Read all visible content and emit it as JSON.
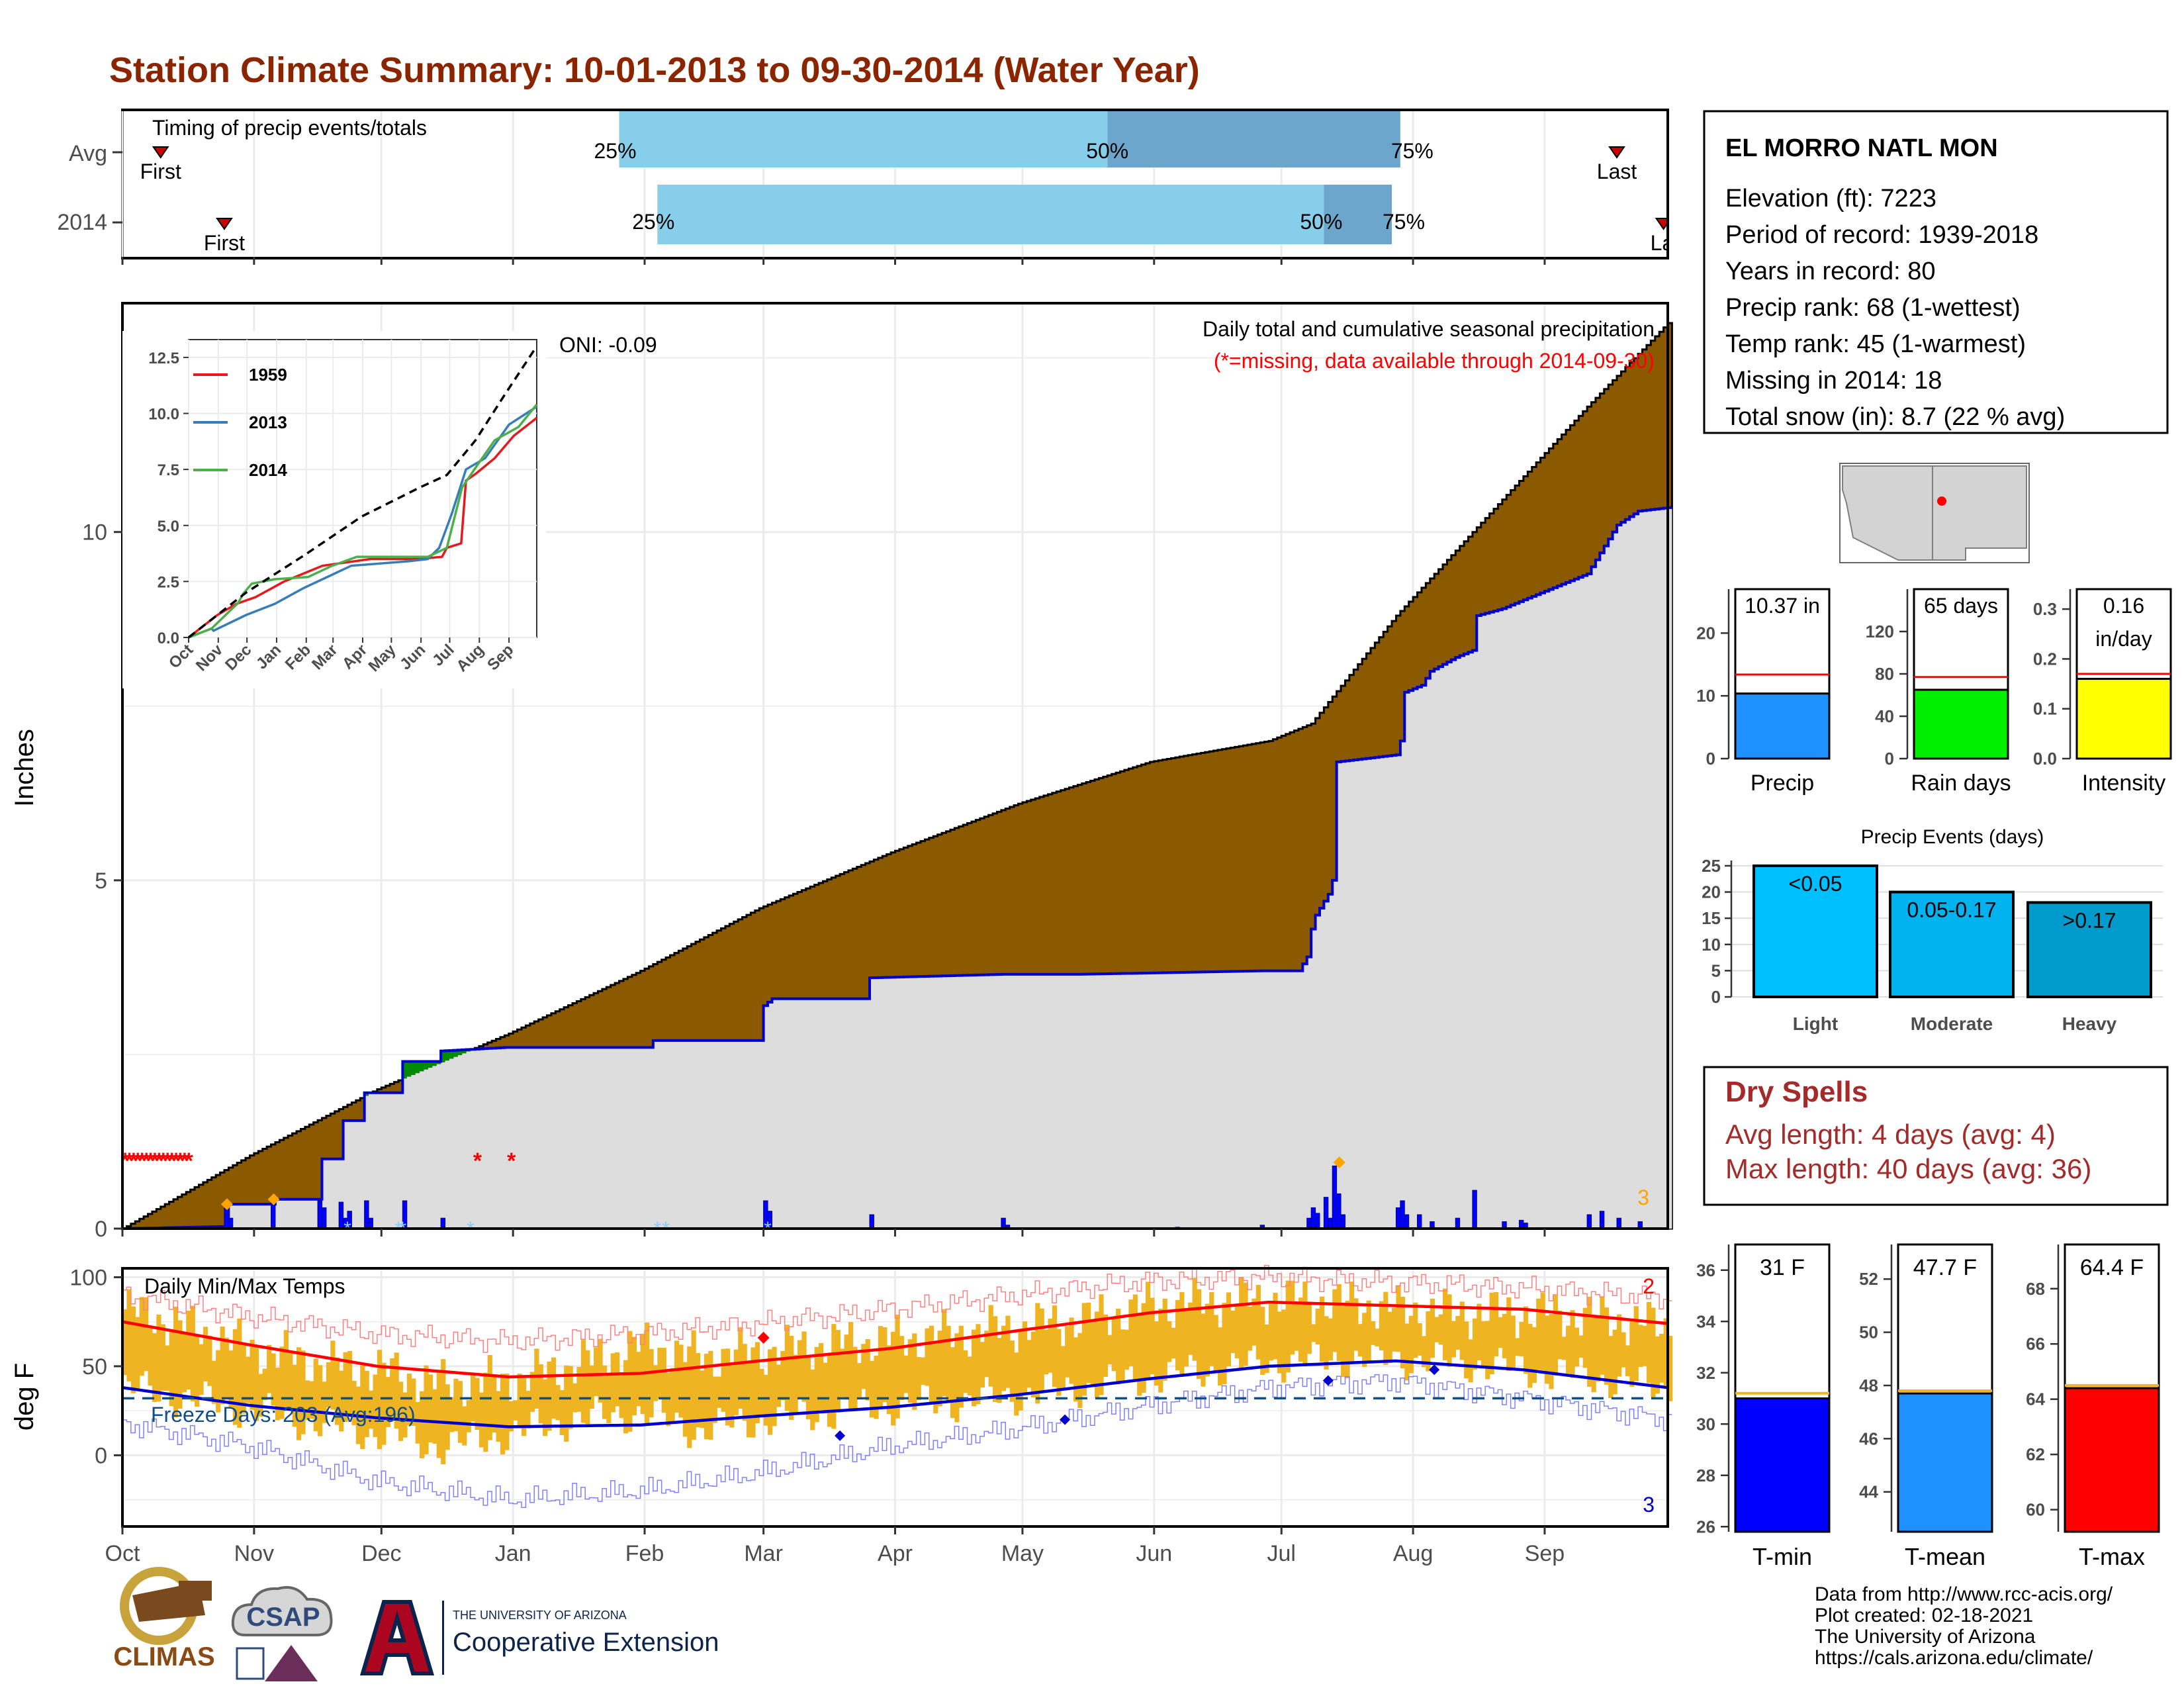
{
  "title": "Station Climate Summary: 10-01-2013 to 09-30-2014 (Water Year)",
  "colors": {
    "title": "#8B2500",
    "avg_precip": "#8B5A00",
    "surplus": "#008B00",
    "current_fill": "#DDDDDD",
    "current_line": "#0000CD",
    "missing": "#FF0000",
    "heavy_event": "#FFA500",
    "bar_q_light": "#87CEEB",
    "bar_q_dark": "#6CA6CD",
    "temp_range": "#EEB422",
    "tmax_avg": "#FF0000",
    "tmin_avg": "#0000CD",
    "freeze_line": "#104E8B"
  },
  "months": [
    "Oct",
    "Nov",
    "Dec",
    "Jan",
    "Feb",
    "Mar",
    "Apr",
    "May",
    "Jun",
    "Jul",
    "Aug",
    "Sep"
  ],
  "timing": {
    "label": "Timing of precip events/totals",
    "rows": [
      {
        "name": "Avg",
        "q25": 117,
        "q50": 232,
        "q75": 301,
        "first": 9,
        "last": 352,
        "first_label": "First",
        "last_label": "Last",
        "q25_label": "25%",
        "q50_label": "50%",
        "q75_label": "75%"
      },
      {
        "name": "2014",
        "q25": 126,
        "q50": 283,
        "q75": 299,
        "first": 24,
        "last": 363,
        "first_label": "First",
        "last_label": "Last",
        "q25_label": "25%",
        "q50_label": "50%",
        "q75_label": "75%"
      }
    ]
  },
  "precip_panel": {
    "ylabel": "Inches",
    "oni": "ONI: -0.09",
    "title": "Daily total and cumulative seasonal precipitation",
    "subtitle": "(*=missing, data available through 2014-09-30)",
    "ymax": 13.0,
    "yticks": [
      0,
      5,
      10
    ],
    "corner_label": "3",
    "avg_cum": [
      [
        0,
        0
      ],
      [
        30,
        1.05
      ],
      [
        60,
        2.0
      ],
      [
        91,
        2.8
      ],
      [
        122,
        3.7
      ],
      [
        150,
        4.6
      ],
      [
        181,
        5.4
      ],
      [
        211,
        6.1
      ],
      [
        242,
        6.7
      ],
      [
        270,
        7.0
      ],
      [
        280,
        7.25
      ],
      [
        300,
        8.8
      ],
      [
        330,
        10.8
      ],
      [
        345,
        11.8
      ],
      [
        364,
        13.0
      ]
    ],
    "current_cum": [
      [
        0,
        0
      ],
      [
        24,
        0.03
      ],
      [
        25,
        0.35
      ],
      [
        35,
        0.35
      ],
      [
        36,
        0.42
      ],
      [
        46,
        0.42
      ],
      [
        47,
        1.0
      ],
      [
        51,
        1.0
      ],
      [
        52,
        1.55
      ],
      [
        56,
        1.55
      ],
      [
        57,
        1.95
      ],
      [
        65,
        1.95
      ],
      [
        66,
        2.4
      ],
      [
        74,
        2.4
      ],
      [
        75,
        2.55
      ],
      [
        90,
        2.6
      ],
      [
        124,
        2.6
      ],
      [
        125,
        2.7
      ],
      [
        150,
        2.7
      ],
      [
        151,
        3.2
      ],
      [
        153,
        3.3
      ],
      [
        175,
        3.3
      ],
      [
        176,
        3.6
      ],
      [
        207,
        3.65
      ],
      [
        225,
        3.65
      ],
      [
        268,
        3.7
      ],
      [
        277,
        3.7
      ],
      [
        279,
        3.9
      ],
      [
        280,
        4.3
      ],
      [
        281,
        4.5
      ],
      [
        284,
        4.8
      ],
      [
        285,
        5.0
      ],
      [
        286,
        6.7
      ],
      [
        300,
        6.8
      ],
      [
        301,
        7.0
      ],
      [
        302,
        7.7
      ],
      [
        306,
        7.8
      ],
      [
        308,
        8.0
      ],
      [
        314,
        8.2
      ],
      [
        318,
        8.3
      ],
      [
        319,
        8.8
      ],
      [
        325,
        8.9
      ],
      [
        345,
        9.4
      ],
      [
        348,
        9.7
      ],
      [
        352,
        10.1
      ],
      [
        357,
        10.3
      ],
      [
        364,
        10.35
      ]
    ],
    "daily": [
      [
        24,
        0.32
      ],
      [
        25,
        0.15
      ],
      [
        35,
        0.42
      ],
      [
        46,
        0.4
      ],
      [
        47,
        0.3
      ],
      [
        51,
        0.38
      ],
      [
        52,
        0.15
      ],
      [
        53,
        0.25
      ],
      [
        57,
        0.4
      ],
      [
        58,
        0.15
      ],
      [
        66,
        0.4
      ],
      [
        75,
        0.15
      ],
      [
        151,
        0.4
      ],
      [
        152,
        0.25
      ],
      [
        176,
        0.2
      ],
      [
        207,
        0.15
      ],
      [
        208,
        0.05
      ],
      [
        248,
        0.02
      ],
      [
        268,
        0.05
      ],
      [
        279,
        0.15
      ],
      [
        280,
        0.3
      ],
      [
        281,
        0.22
      ],
      [
        283,
        0.45
      ],
      [
        284,
        0.15
      ],
      [
        285,
        0.9
      ],
      [
        286,
        0.5
      ],
      [
        287,
        0.2
      ],
      [
        300,
        0.3
      ],
      [
        301,
        0.4
      ],
      [
        302,
        0.2
      ],
      [
        305,
        0.2
      ],
      [
        308,
        0.1
      ],
      [
        314,
        0.15
      ],
      [
        318,
        0.55
      ],
      [
        325,
        0.1
      ],
      [
        329,
        0.12
      ],
      [
        330,
        0.08
      ],
      [
        345,
        0.2
      ],
      [
        348,
        0.25
      ],
      [
        352,
        0.15
      ],
      [
        357,
        0.1
      ]
    ],
    "missing_days": [
      0,
      1,
      2,
      3,
      4,
      5,
      6,
      7,
      8,
      9,
      10,
      11,
      12,
      13,
      14,
      15,
      83,
      91
    ],
    "snow_days": [
      53,
      65,
      66,
      82,
      126,
      128,
      152
    ],
    "heavy_events": [
      [
        24,
        0.35
      ],
      [
        35,
        0.42
      ],
      [
        286,
        0.95
      ]
    ]
  },
  "inset": {
    "yticks": [
      "0.0",
      "2.5",
      "5.0",
      "7.5",
      "10.0",
      "12.5"
    ],
    "xticks": [
      "Oct",
      "Nov",
      "Dec",
      "Jan",
      "Feb",
      "Mar",
      "Apr",
      "May",
      "Jun",
      "Jul",
      "Aug",
      "Sep"
    ],
    "ymax": 13.0,
    "series": [
      {
        "name": "1959",
        "color": "#E41A1C",
        "points": [
          [
            0,
            0
          ],
          [
            30,
            1.0
          ],
          [
            50,
            1.5
          ],
          [
            70,
            1.8
          ],
          [
            100,
            2.5
          ],
          [
            140,
            3.2
          ],
          [
            190,
            3.5
          ],
          [
            240,
            3.5
          ],
          [
            265,
            3.6
          ],
          [
            270,
            4.0
          ],
          [
            285,
            4.2
          ],
          [
            290,
            7.0
          ],
          [
            300,
            7.3
          ],
          [
            320,
            8.0
          ],
          [
            340,
            9.0
          ],
          [
            364,
            9.8
          ]
        ]
      },
      {
        "name": "2013",
        "color": "#377EB8",
        "points": [
          [
            0,
            0
          ],
          [
            24,
            0.4
          ],
          [
            26,
            0.3
          ],
          [
            60,
            1.0
          ],
          [
            90,
            1.5
          ],
          [
            120,
            2.2
          ],
          [
            150,
            2.8
          ],
          [
            170,
            3.2
          ],
          [
            230,
            3.4
          ],
          [
            250,
            3.5
          ],
          [
            262,
            4.0
          ],
          [
            275,
            5.5
          ],
          [
            290,
            7.5
          ],
          [
            310,
            8.0
          ],
          [
            335,
            9.5
          ],
          [
            364,
            10.3
          ]
        ]
      },
      {
        "name": "2014",
        "color": "#4DAF4A",
        "points": [
          [
            0,
            0
          ],
          [
            24,
            0.4
          ],
          [
            52,
            1.55
          ],
          [
            57,
            1.95
          ],
          [
            66,
            2.4
          ],
          [
            90,
            2.6
          ],
          [
            125,
            2.7
          ],
          [
            150,
            3.2
          ],
          [
            176,
            3.6
          ],
          [
            250,
            3.6
          ],
          [
            270,
            4.0
          ],
          [
            286,
            6.7
          ],
          [
            302,
            7.7
          ],
          [
            320,
            8.8
          ],
          [
            345,
            9.4
          ],
          [
            364,
            10.4
          ]
        ]
      }
    ],
    "avg": [
      [
        0,
        0
      ],
      [
        60,
        2.0
      ],
      [
        122,
        3.7
      ],
      [
        181,
        5.4
      ],
      [
        242,
        6.7
      ],
      [
        270,
        7.25
      ],
      [
        300,
        8.8
      ],
      [
        330,
        10.8
      ],
      [
        364,
        13.0
      ]
    ]
  },
  "temp_panel": {
    "ylabel": "deg F",
    "label": "Daily Min/Max Temps",
    "freeze_label": "Freeze Days: 203 (Avg:196)",
    "freeze_line": 32,
    "yticks": [
      0,
      50,
      100
    ],
    "ymin": -40,
    "ymax": 105,
    "max_label": "2",
    "min_label": "3",
    "tmax_avg": [
      [
        0,
        75
      ],
      [
        30,
        62
      ],
      [
        60,
        50
      ],
      [
        91,
        44
      ],
      [
        122,
        46
      ],
      [
        150,
        53
      ],
      [
        181,
        60
      ],
      [
        211,
        70
      ],
      [
        242,
        80
      ],
      [
        270,
        86
      ],
      [
        300,
        84
      ],
      [
        330,
        82
      ],
      [
        364,
        74
      ]
    ],
    "tmin_avg": [
      [
        0,
        38
      ],
      [
        30,
        28
      ],
      [
        60,
        21
      ],
      [
        91,
        16
      ],
      [
        122,
        17
      ],
      [
        150,
        22
      ],
      [
        181,
        27
      ],
      [
        211,
        34
      ],
      [
        242,
        43
      ],
      [
        270,
        50
      ],
      [
        300,
        53
      ],
      [
        330,
        48
      ],
      [
        364,
        38
      ]
    ],
    "rec_hi": [
      [
        0,
        90
      ],
      [
        30,
        78
      ],
      [
        60,
        68
      ],
      [
        91,
        64
      ],
      [
        122,
        68
      ],
      [
        150,
        74
      ],
      [
        181,
        82
      ],
      [
        211,
        90
      ],
      [
        242,
        98
      ],
      [
        270,
        100
      ],
      [
        300,
        97
      ],
      [
        330,
        94
      ],
      [
        364,
        88
      ]
    ],
    "rec_lo": [
      [
        0,
        18
      ],
      [
        30,
        5
      ],
      [
        60,
        -15
      ],
      [
        91,
        -25
      ],
      [
        122,
        -20
      ],
      [
        150,
        -10
      ],
      [
        181,
        5
      ],
      [
        211,
        15
      ],
      [
        242,
        28
      ],
      [
        270,
        38
      ],
      [
        300,
        42
      ],
      [
        330,
        32
      ],
      [
        364,
        20
      ]
    ],
    "obs": [
      [
        0,
        82,
        38
      ],
      [
        15,
        72,
        32
      ],
      [
        30,
        60,
        25
      ],
      [
        45,
        52,
        18
      ],
      [
        60,
        48,
        12
      ],
      [
        75,
        40,
        5
      ],
      [
        91,
        42,
        12
      ],
      [
        105,
        50,
        20
      ],
      [
        122,
        62,
        24
      ],
      [
        135,
        55,
        14
      ],
      [
        150,
        58,
        20
      ],
      [
        165,
        62,
        24
      ],
      [
        181,
        65,
        28
      ],
      [
        196,
        68,
        30
      ],
      [
        211,
        72,
        34
      ],
      [
        226,
        76,
        38
      ],
      [
        242,
        84,
        44
      ],
      [
        256,
        86,
        48
      ],
      [
        270,
        88,
        52
      ],
      [
        285,
        86,
        54
      ],
      [
        300,
        82,
        54
      ],
      [
        315,
        80,
        52
      ],
      [
        330,
        80,
        48
      ],
      [
        345,
        78,
        44
      ],
      [
        364,
        72,
        38
      ]
    ],
    "tmax_records": [
      [
        151,
        66
      ]
    ],
    "tmin_records": [
      [
        169,
        11
      ],
      [
        222,
        20
      ],
      [
        284,
        42
      ],
      [
        309,
        48
      ]
    ]
  },
  "station": {
    "name": "EL MORRO NATL MON",
    "lines": [
      "Elevation (ft): 7223",
      "Period of record: 1939-2018",
      "Years in record: 80",
      "Precip rank: 68 (1-wettest)",
      "Temp rank: 45 (1-warmest)",
      "Missing in 2014: 18",
      "Total snow (in): 8.7 (22 % avg)"
    ]
  },
  "summary_bars": [
    {
      "label": "Precip",
      "value_label": "10.37 in",
      "value": 10.37,
      "avg": 13.4,
      "ymax": 27,
      "yticks": [
        "0",
        "10",
        "20"
      ],
      "ytick_vals": [
        0,
        10,
        20
      ],
      "color": "#1E90FF"
    },
    {
      "label": "Rain days",
      "value_label": "65 days",
      "value": 65,
      "avg": 77,
      "ymax": 160,
      "yticks": [
        "0",
        "40",
        "80",
        "120"
      ],
      "ytick_vals": [
        0,
        40,
        80,
        120
      ],
      "color": "#00EE00"
    },
    {
      "label": "Intensity",
      "value_label": "0.16",
      "value_label2": "in/day",
      "value": 0.16,
      "avg": 0.17,
      "ymax": 0.34,
      "yticks": [
        "0.0",
        "0.1",
        "0.2",
        "0.3"
      ],
      "ytick_vals": [
        0,
        0.1,
        0.2,
        0.3
      ],
      "color": "#FFFF00"
    }
  ],
  "events": {
    "title": "Precip Events (days)",
    "ymax": 26,
    "yticks": [
      "0",
      "5",
      "10",
      "15",
      "20",
      "25"
    ],
    "ytick_vals": [
      0,
      5,
      10,
      15,
      20,
      25
    ],
    "bars": [
      {
        "cat": "Light",
        "label": "<0.05",
        "value": 25,
        "color": "#00BFFF"
      },
      {
        "cat": "Moderate",
        "label": "0.05-0.17",
        "value": 20,
        "color": "#00B2EE"
      },
      {
        "cat": "Heavy",
        "label": ">0.17",
        "value": 18,
        "color": "#009ACD"
      }
    ]
  },
  "dry_spells": {
    "title": "Dry Spells",
    "avg_line": "Avg length: 4 days (avg: 4)",
    "max_line": "Max length: 40 days (avg: 36)"
  },
  "temp_bars": [
    {
      "label": "T-min",
      "value_label": "31 F",
      "value": 31.0,
      "avg": 31.2,
      "ymin": 25.8,
      "ymax": 37,
      "yticks": [
        "26",
        "28",
        "30",
        "32",
        "34",
        "36"
      ],
      "ytick_vals": [
        26,
        28,
        30,
        32,
        34,
        36
      ],
      "color": "#0000FF"
    },
    {
      "label": "T-mean",
      "value_label": "47.7 F",
      "value": 47.7,
      "avg": 47.8,
      "ymin": 42.5,
      "ymax": 53.3,
      "yticks": [
        "44",
        "46",
        "48",
        "50",
        "52"
      ],
      "ytick_vals": [
        44,
        46,
        48,
        50,
        52
      ],
      "color": "#1E90FF"
    },
    {
      "label": "T-max",
      "value_label": "64.4 F",
      "value": 64.4,
      "avg": 64.5,
      "ymin": 59.2,
      "ymax": 69.6,
      "yticks": [
        "60",
        "62",
        "64",
        "66",
        "68"
      ],
      "ytick_vals": [
        60,
        62,
        64,
        66,
        68
      ],
      "color": "#FF0000"
    }
  ],
  "credits": [
    "Data from http://www.rcc-acis.org/",
    "Plot created: 02-18-2021",
    "The University of Arizona",
    "https://cals.arizona.edu/climate/"
  ],
  "logos": {
    "climas": "CLIMAS",
    "csap": "CSAP",
    "ua_small": "THE UNIVERSITY OF ARIZONA",
    "ua_big": "Cooperative Extension"
  }
}
